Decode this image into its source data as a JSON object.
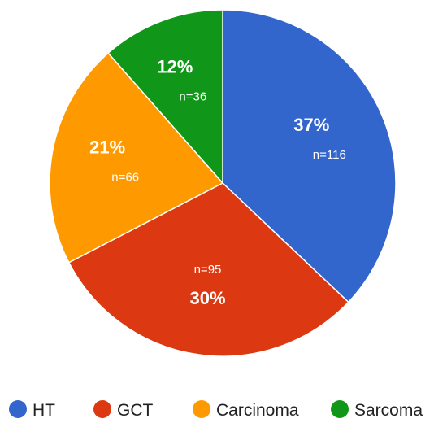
{
  "chart_data": {
    "type": "pie",
    "title": "",
    "legend_position": "bottom",
    "slices": [
      {
        "label": "HT",
        "value": 116,
        "percent_label": "37%",
        "count_label": "n=116",
        "color": "#3366CC"
      },
      {
        "label": "GCT",
        "value": 95,
        "percent_label": "30%",
        "count_label": "n=95",
        "color": "#DC3912"
      },
      {
        "label": "Carcinoma",
        "value": 66,
        "percent_label": "21%",
        "count_label": "n=66",
        "color": "#FF9900"
      },
      {
        "label": "Sarcoma",
        "value": 36,
        "percent_label": "12%",
        "count_label": "n=36",
        "color": "#109618"
      }
    ]
  }
}
